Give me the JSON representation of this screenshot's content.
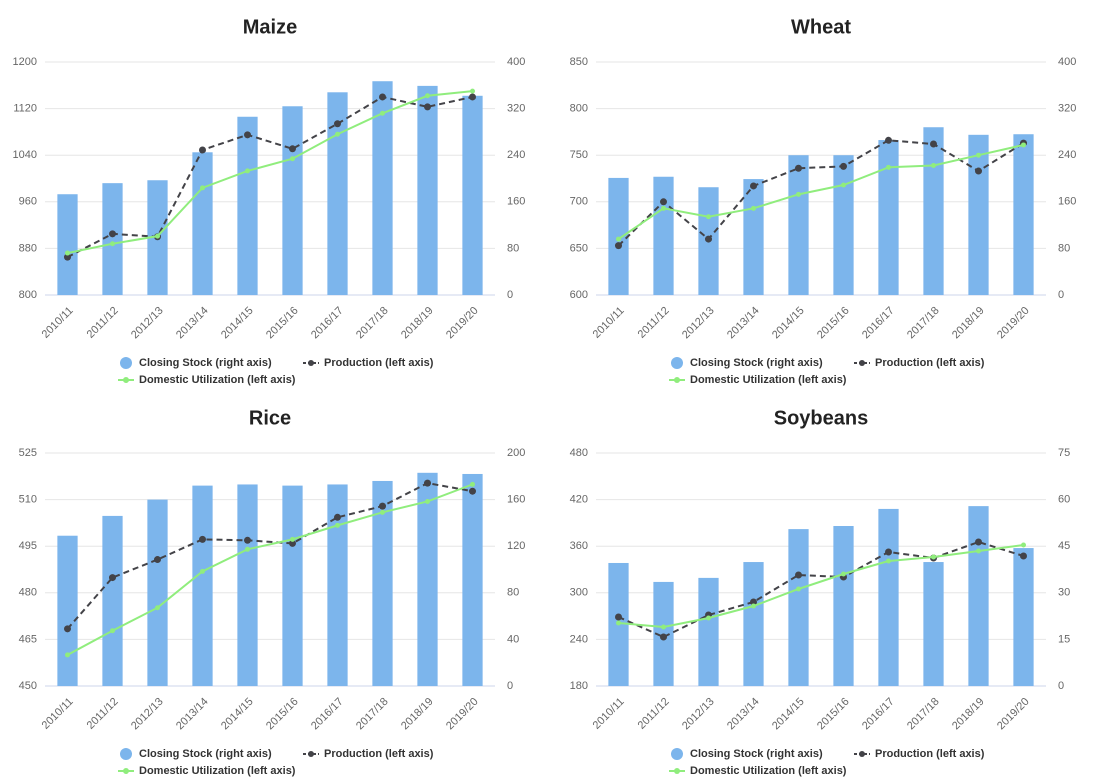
{
  "chart_data": [
    {
      "type": "combo",
      "title": "Maize",
      "categories": [
        "2010/11",
        "2011/12",
        "2012/13",
        "2013/14",
        "2014/15",
        "2015/16",
        "2016/17",
        "2017/18",
        "2018/19",
        "2019/20"
      ],
      "ylim": [
        800,
        1200
      ],
      "yticks": [
        800,
        880,
        960,
        1040,
        1120,
        1200
      ],
      "y2lim": [
        0,
        400
      ],
      "y2ticks": [
        0,
        80,
        160,
        240,
        320,
        400
      ],
      "grid": true,
      "series": [
        {
          "name": "Closing Stock (right axis)",
          "type": "bar",
          "axis": "y2",
          "color": "#7cb5ec",
          "values": [
            173,
            192,
            197,
            245,
            306,
            324,
            348,
            367,
            359,
            342
          ]
        },
        {
          "name": "Production (left axis)",
          "type": "line",
          "dashed": true,
          "color": "#434348",
          "values": [
            865,
            905,
            900,
            1049,
            1075,
            1051,
            1094,
            1140,
            1123,
            1140
          ]
        },
        {
          "name": "Domestic Utilization (left axis)",
          "type": "line",
          "dashed": false,
          "color": "#90ed7d",
          "values": [
            872,
            888,
            901,
            984,
            1013,
            1034,
            1076,
            1112,
            1142,
            1150
          ]
        }
      ]
    },
    {
      "type": "combo",
      "title": "Wheat",
      "categories": [
        "2010/11",
        "2011/12",
        "2012/13",
        "2013/14",
        "2014/15",
        "2015/16",
        "2016/17",
        "2017/18",
        "2018/19",
        "2019/20"
      ],
      "ylim": [
        600,
        850
      ],
      "yticks": [
        600,
        650,
        700,
        750,
        800,
        850
      ],
      "y2lim": [
        0,
        400
      ],
      "y2ticks": [
        0,
        80,
        160,
        240,
        320,
        400
      ],
      "grid": true,
      "series": [
        {
          "name": "Closing Stock (right axis)",
          "type": "bar",
          "axis": "y2",
          "color": "#7cb5ec",
          "values": [
            201,
            203,
            185,
            199,
            240,
            240,
            266,
            288,
            275,
            276
          ]
        },
        {
          "name": "Production (left axis)",
          "type": "line",
          "dashed": true,
          "color": "#434348",
          "values": [
            653,
            700,
            660,
            717,
            736,
            738,
            766,
            762,
            733,
            763
          ]
        },
        {
          "name": "Domestic Utilization (left axis)",
          "type": "line",
          "dashed": false,
          "color": "#90ed7d",
          "values": [
            660,
            693,
            684,
            693,
            708,
            718,
            737,
            739,
            750,
            761
          ]
        }
      ]
    },
    {
      "type": "combo",
      "title": "Rice",
      "categories": [
        "2010/11",
        "2011/12",
        "2012/13",
        "2013/14",
        "2014/15",
        "2015/16",
        "2016/17",
        "2017/18",
        "2018/19",
        "2019/20"
      ],
      "ylim": [
        450,
        525
      ],
      "yticks": [
        450,
        465,
        480,
        495,
        510,
        525
      ],
      "y2lim": [
        0,
        200
      ],
      "y2ticks": [
        0,
        40,
        80,
        120,
        160,
        200
      ],
      "grid": true,
      "series": [
        {
          "name": "Closing Stock (right axis)",
          "type": "bar",
          "axis": "y2",
          "color": "#7cb5ec",
          "values": [
            129,
            146,
            160,
            172,
            173,
            172,
            173,
            176,
            183,
            182
          ]
        },
        {
          "name": "Production (left axis)",
          "type": "line",
          "dashed": true,
          "color": "#434348",
          "values": [
            468.4,
            484.9,
            490.7,
            497.2,
            496.9,
            495.9,
            504.3,
            507.9,
            515.3,
            512.7
          ]
        },
        {
          "name": "Domestic Utilization (left axis)",
          "type": "line",
          "dashed": false,
          "color": "#90ed7d",
          "values": [
            460.0,
            467.8,
            475.2,
            486.9,
            494.0,
            497.2,
            501.7,
            505.9,
            509.4,
            514.9
          ]
        }
      ]
    },
    {
      "type": "combo",
      "title": "Soybeans",
      "categories": [
        "2010/11",
        "2011/12",
        "2012/13",
        "2013/14",
        "2014/15",
        "2015/16",
        "2016/17",
        "2017/18",
        "2018/19",
        "2019/20"
      ],
      "ylim": [
        180,
        480
      ],
      "yticks": [
        180,
        240,
        300,
        360,
        420,
        480
      ],
      "y2lim": [
        0,
        75
      ],
      "y2ticks": [
        0,
        15,
        30,
        45,
        60,
        75
      ],
      "grid": true,
      "series": [
        {
          "name": "Closing Stock (right axis)",
          "type": "bar",
          "axis": "y2",
          "color": "#7cb5ec",
          "values": [
            39.6,
            33.5,
            34.8,
            39.9,
            50.5,
            51.5,
            57.0,
            39.9,
            57.9,
            44.4
          ]
        },
        {
          "name": "Production (left axis)",
          "type": "line",
          "dashed": true,
          "color": "#434348",
          "values": [
            268.8,
            243.1,
            271.4,
            288.2,
            322.9,
            320.3,
            352.5,
            344.8,
            365.4,
            347.4
          ]
        },
        {
          "name": "Domestic Utilization (left axis)",
          "type": "line",
          "dashed": false,
          "color": "#90ed7d",
          "values": [
            261.1,
            256.0,
            267.6,
            283.0,
            304.9,
            324.2,
            340.9,
            346.1,
            353.8,
            361.5
          ]
        }
      ]
    }
  ]
}
